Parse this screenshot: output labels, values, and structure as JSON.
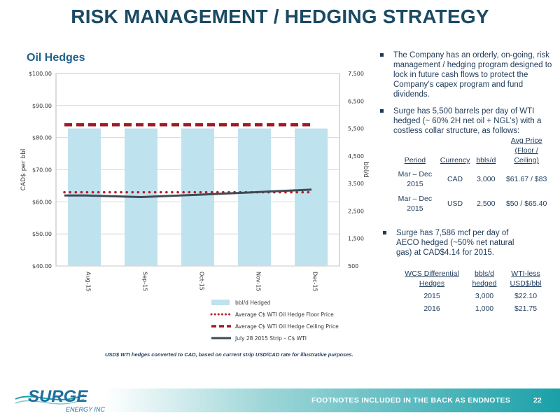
{
  "page": {
    "title": "RISK MANAGEMENT / HEDGING STRATEGY",
    "subtitle": "Oil Hedges",
    "footnote": "USD$ WTI hedges converted to CAD, based on current strip USD/CAD rate for illustrative purposes.",
    "footer_text": "FOOTNOTES INCLUDED IN THE BACK AS ENDNOTES",
    "page_number": "22",
    "logo_text": "SURGE",
    "logo_subtext": "ENERGY INC"
  },
  "chart_data": {
    "type": "bar",
    "categories": [
      "Aug-15",
      "Sep-15",
      "Oct-15",
      "Nov-15",
      "Dec-15"
    ],
    "ylabel": "CAD$ per bbl",
    "y2label": "bbl/d",
    "ylim": [
      40,
      100
    ],
    "y2lim": [
      500,
      7500
    ],
    "y_ticks": [
      "$40.00",
      "$50.00",
      "$60.00",
      "$70.00",
      "$80.00",
      "$90.00",
      "$100.00"
    ],
    "y_tick_values": [
      40,
      50,
      60,
      70,
      80,
      90,
      100
    ],
    "y2_ticks": [
      "500",
      "1,500",
      "2,500",
      "3,500",
      "4,500",
      "5,500",
      "6,500",
      "7,500"
    ],
    "y2_tick_values": [
      500,
      1500,
      2500,
      3500,
      4500,
      5500,
      6500,
      7500
    ],
    "grid": true,
    "legend_position": "bottom",
    "series": [
      {
        "name": "bbl/d Hedged",
        "kind": "bar",
        "axis": "y2",
        "color": "#bfe2ef",
        "values": [
          5500,
          5500,
          5500,
          5500,
          5500
        ]
      },
      {
        "name": "Average C$ WTI Oil Hedge Floor Price",
        "kind": "dotted",
        "axis": "y",
        "color": "#b3202a",
        "values": [
          63.0,
          63.0,
          63.0,
          63.0,
          63.0
        ]
      },
      {
        "name": "Average C$ WTI Oil Hedge Ceiling Price",
        "kind": "dashed",
        "axis": "y",
        "color": "#a31a24",
        "values": [
          84.0,
          84.0,
          84.0,
          84.0,
          84.0
        ]
      },
      {
        "name": "July 28 2015 Strip – C$ WTI",
        "kind": "line",
        "axis": "y",
        "color": "#3f4a55",
        "values": [
          62.0,
          61.5,
          62.2,
          63.0,
          63.8
        ]
      }
    ]
  },
  "bullets": [
    "The Company has an orderly, on-going, risk management / hedging program designed to lock in future cash flows to protect the Company’s capex program and fund dividends.",
    "Surge has 5,500 barrels per day of WTI hedged  (~ 60% 2H net oil + NGL’s) with a costless collar structure, as follows:",
    "Surge has 7,586 mcf per day of AECO hedged (~50% net natural gas) at CAD$4.14 for 2015."
  ],
  "hedge_table": {
    "headers": [
      "Period",
      "Currency",
      "bbls/d",
      "Avg Price (Floor / Ceiling)"
    ],
    "rows": [
      [
        "Mar – Dec 2015",
        "CAD",
        "3,000",
        "$61.67 / $83"
      ],
      [
        "Mar – Dec 2015",
        "USD",
        "2,500",
        "$50 / $65.40"
      ]
    ]
  },
  "wcs_table": {
    "headers": [
      "WCS Differential Hedges",
      "bbls/d hedged",
      "WTI-less USD$/bbl"
    ],
    "rows": [
      [
        "2015",
        "3,000",
        "$22.10"
      ],
      [
        "2016",
        "1,000",
        "$21.75"
      ]
    ]
  }
}
